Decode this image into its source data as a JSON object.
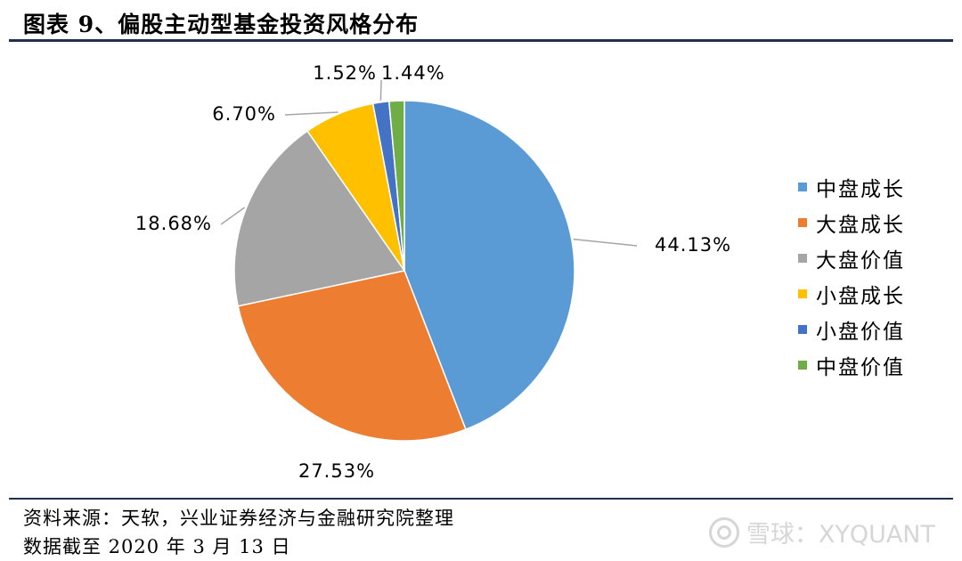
{
  "title": "图表 9、偏股主动型基金投资风格分布",
  "chart_data": {
    "type": "pie",
    "categories": [
      "中盘成长",
      "大盘成长",
      "大盘价值",
      "小盘成长",
      "小盘价值",
      "中盘价值"
    ],
    "values": [
      44.13,
      27.53,
      18.68,
      6.7,
      1.52,
      1.44
    ],
    "labels": [
      "44.13%",
      "27.53%",
      "18.68%",
      "6.70%",
      "1.52%",
      "1.44%"
    ],
    "colors": [
      "#5b9bd5",
      "#ed7d31",
      "#a5a5a5",
      "#ffc000",
      "#4472c4",
      "#70ad47"
    ],
    "start_angle": "12 o'clock",
    "direction": "clockwise",
    "legend": "right"
  },
  "footer": {
    "source": "资料来源：天软，兴业证券经济与金融研究院整理",
    "date": "数据截至 2020 年 3 月 13 日"
  },
  "watermark": "雪球：XYQUANT"
}
